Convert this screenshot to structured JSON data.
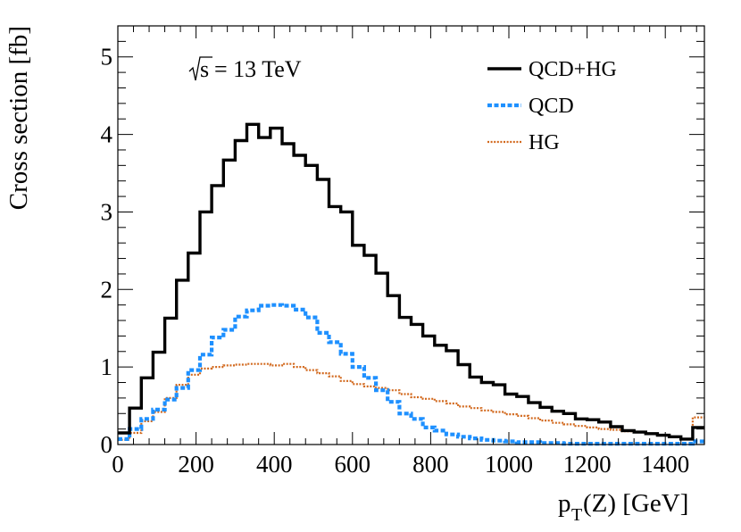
{
  "chart_data": {
    "type": "line",
    "title": "",
    "annotation": "= 13 TeV",
    "annotation_sqrt": "s",
    "xlabel": "p",
    "xlabel_sub": "T",
    "xlabel_rest": "(Z) [GeV]",
    "ylabel": "Cross section [fb]",
    "xlim": [
      0,
      1500
    ],
    "ylim": [
      0,
      5.4
    ],
    "bin_width": 30,
    "grid": false,
    "legend_position": "top-right",
    "x_ticks": [
      "0",
      "200",
      "400",
      "600",
      "800",
      "1000",
      "1200",
      "1400"
    ],
    "y_ticks": [
      "0",
      "1",
      "2",
      "3",
      "4",
      "5"
    ],
    "series": [
      {
        "name": "QCD+HG",
        "color": "#000000",
        "style": "solid",
        "values": [
          0.15,
          0.47,
          0.86,
          1.19,
          1.63,
          2.12,
          2.47,
          3.0,
          3.34,
          3.67,
          3.92,
          4.13,
          3.96,
          4.08,
          3.88,
          3.73,
          3.6,
          3.42,
          3.07,
          3.0,
          2.57,
          2.44,
          2.21,
          1.92,
          1.64,
          1.55,
          1.4,
          1.28,
          1.21,
          1.03,
          0.87,
          0.8,
          0.77,
          0.65,
          0.62,
          0.54,
          0.48,
          0.43,
          0.4,
          0.33,
          0.32,
          0.29,
          0.23,
          0.18,
          0.16,
          0.14,
          0.12,
          0.1,
          0.07,
          0.22
        ]
      },
      {
        "name": "QCD",
        "color": "#1e90ff",
        "style": "dashed",
        "values": [
          0.07,
          0.2,
          0.33,
          0.45,
          0.58,
          0.73,
          0.96,
          1.16,
          1.38,
          1.48,
          1.65,
          1.73,
          1.79,
          1.8,
          1.79,
          1.74,
          1.64,
          1.44,
          1.32,
          1.17,
          1.0,
          0.86,
          0.7,
          0.55,
          0.4,
          0.33,
          0.22,
          0.18,
          0.13,
          0.1,
          0.08,
          0.06,
          0.05,
          0.04,
          0.03,
          0.03,
          0.02,
          0.02,
          0.01,
          0.01,
          0.01,
          0.01,
          0.01,
          0.01,
          0.01,
          0.01,
          0.01,
          0.01,
          0.01,
          0.04
        ]
      },
      {
        "name": "HG",
        "color": "#d2691e",
        "style": "dotted",
        "values": [
          0.06,
          0.15,
          0.3,
          0.42,
          0.6,
          0.77,
          0.9,
          0.98,
          1.0,
          1.02,
          1.03,
          1.04,
          1.04,
          1.02,
          1.04,
          1.0,
          0.96,
          0.92,
          0.88,
          0.82,
          0.78,
          0.75,
          0.73,
          0.7,
          0.65,
          0.61,
          0.59,
          0.56,
          0.53,
          0.49,
          0.47,
          0.44,
          0.42,
          0.39,
          0.37,
          0.34,
          0.31,
          0.28,
          0.26,
          0.24,
          0.22,
          0.2,
          0.19,
          0.17,
          0.16,
          0.14,
          0.12,
          0.1,
          0.07,
          0.35
        ]
      }
    ]
  }
}
